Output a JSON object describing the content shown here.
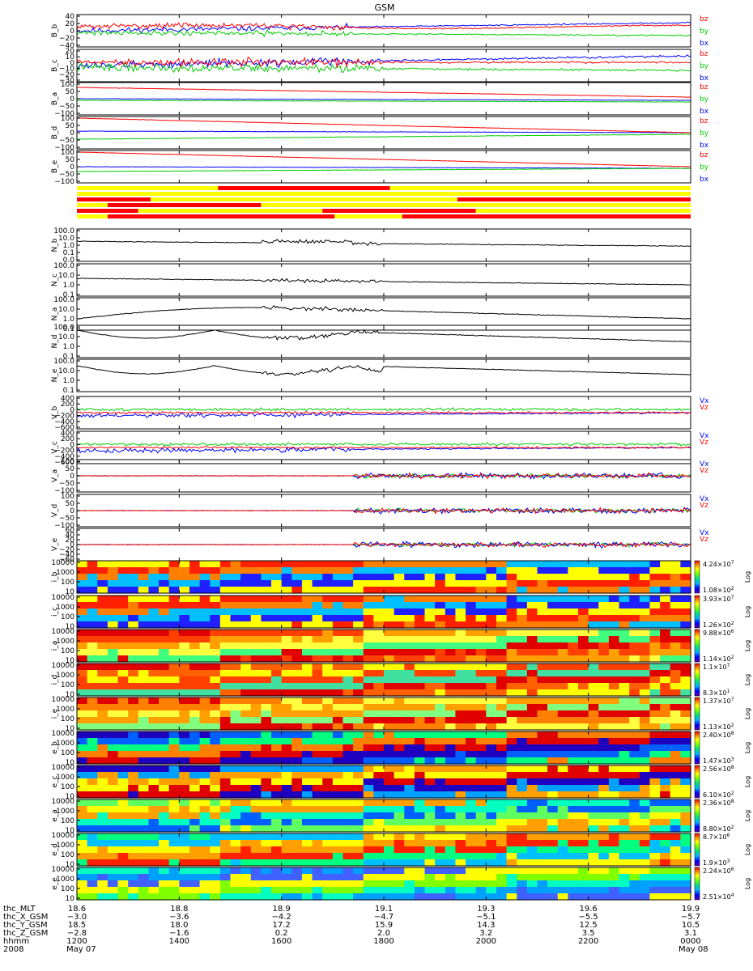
{
  "chart_data": {
    "type": "line",
    "title": "GSM",
    "colors": {
      "bx": "#0000ff",
      "by": "#00cc00",
      "bz": "#ff0000",
      "density": "#000000",
      "bar_on": "#ff0000",
      "bar_off": "#ffff00"
    },
    "x_axis": {
      "range_hhmm": [
        "1200",
        "0000"
      ],
      "hhmm_ticks": [
        "1200",
        "1400",
        "1600",
        "1800",
        "2000",
        "2200",
        "0000"
      ],
      "date_start": "May 07",
      "date_end": "May 08",
      "year": "2008",
      "ephemeris": [
        {
          "name": "thc_MLT",
          "values": [
            "18.6",
            "18.8",
            "18.9",
            "19.1",
            "19.3",
            "19.6",
            "19.9"
          ]
        },
        {
          "name": "thc_X_GSM",
          "values": [
            "−3.0",
            "−3.6",
            "−4.2",
            "−4.7",
            "−5.1",
            "−5.5",
            "−5.7"
          ]
        },
        {
          "name": "thc_Y_GSM",
          "values": [
            "18.5",
            "18.0",
            "17.2",
            "15.9",
            "14.3",
            "12.5",
            "10.5"
          ]
        },
        {
          "name": "thc_Z_GSM",
          "values": [
            "−2.8",
            "−1.6",
            "0.2",
            "2.0",
            "3.2",
            "3.5",
            "3.1"
          ]
        },
        {
          "name": "hhmm",
          "values": [
            "1200",
            "1400",
            "1600",
            "1800",
            "2000",
            "2200",
            "0000"
          ]
        }
      ]
    },
    "field_panels": [
      {
        "ylabel": "B_b",
        "ticks": [
          "40",
          "20",
          "0",
          "−20",
          "−40"
        ],
        "ylim": [
          -40,
          40
        ],
        "legend": [
          "bz",
          "by",
          "bx"
        ]
      },
      {
        "ylabel": "B_c",
        "ticks": [
          "20",
          "10",
          "0",
          "−10",
          "−20",
          "−30"
        ],
        "ylim": [
          -30,
          20
        ],
        "legend": [
          "bz",
          "by",
          "bx"
        ]
      },
      {
        "ylabel": "B_a",
        "ticks": [
          "100",
          "50",
          "0",
          "−50",
          "−100"
        ],
        "ylim": [
          -100,
          100
        ],
        "legend": [
          "bz",
          "by",
          "bx"
        ]
      },
      {
        "ylabel": "B_d",
        "ticks": [
          "100",
          "50",
          "0",
          "−50",
          "−100"
        ],
        "ylim": [
          -100,
          100
        ],
        "legend": [
          "bz",
          "by",
          "bx"
        ]
      },
      {
        "ylabel": "B_e",
        "ticks": [
          "100",
          "50",
          "0",
          "−50",
          "−100"
        ],
        "ylim": [
          -100,
          100
        ],
        "legend": [
          "bz",
          "by",
          "bx"
        ]
      }
    ],
    "density_panels": [
      {
        "ylabel": "N_b",
        "ticks": [
          "100.0",
          "10.0",
          "1.0",
          "0.1",
          "0.0"
        ],
        "scale": "log"
      },
      {
        "ylabel": "N_c",
        "ticks": [
          "100.0",
          "10.0",
          "1.0",
          "0.1"
        ],
        "scale": "log"
      },
      {
        "ylabel": "N_a",
        "ticks": [
          "100.0",
          "10.0",
          "1.0",
          "0.1"
        ],
        "scale": "log"
      },
      {
        "ylabel": "N_d",
        "ticks": [
          "100.0",
          "10.0",
          "1.0",
          "0.1"
        ],
        "scale": "log"
      },
      {
        "ylabel": "N_e",
        "ticks": [
          "100.0",
          "10.0",
          "1.0",
          "0.1"
        ],
        "scale": "log"
      }
    ],
    "velocity_panels": [
      {
        "ylabel": "V_b",
        "ticks": [
          "400",
          "200",
          "0",
          "−200",
          "−400",
          "−600"
        ],
        "ylim": [
          -600,
          400
        ],
        "legend": [
          "Vx",
          "Vz"
        ]
      },
      {
        "ylabel": "V_c",
        "ticks": [
          "400",
          "200",
          "0",
          "−200",
          "−400",
          "−600"
        ],
        "ylim": [
          -600,
          400
        ],
        "legend": [
          "Vx",
          "Vz"
        ]
      },
      {
        "ylabel": "V_a",
        "ticks": [
          "100",
          "50",
          "0",
          "−50",
          "−100"
        ],
        "ylim": [
          -100,
          100
        ],
        "legend": [
          "Vx",
          "Vz"
        ]
      },
      {
        "ylabel": "V_d",
        "ticks": [
          "100",
          "50",
          "0",
          "−50",
          "−100"
        ],
        "ylim": [
          -100,
          100
        ],
        "legend": [
          "Vx",
          "Vz"
        ]
      },
      {
        "ylabel": "V_e",
        "ticks": [
          "60",
          "40",
          "20",
          "0",
          "−20",
          "−40",
          "−60"
        ],
        "ylim": [
          -60,
          60
        ],
        "legend": [
          "Vx",
          "Vz"
        ]
      }
    ],
    "spectrogram_panels": [
      {
        "ylabel": "i_b",
        "ticks": [
          "10000",
          "1000",
          "100",
          "10"
        ],
        "cb_max": "4.24×10",
        "cb_max_exp": "7",
        "cb_min": "1.08×10",
        "cb_min_exp": "2",
        "cb_label": "Log"
      },
      {
        "ylabel": "i_c",
        "ticks": [
          "10000",
          "1000",
          "100",
          "10"
        ],
        "cb_max": "3.93×10",
        "cb_max_exp": "7",
        "cb_min": "1.26×10",
        "cb_min_exp": "2",
        "cb_label": "Log"
      },
      {
        "ylabel": "i_a",
        "ticks": [
          "10000",
          "1000",
          "100",
          "10"
        ],
        "cb_max": "9.88×10",
        "cb_max_exp": "6",
        "cb_min": "1.14×10",
        "cb_min_exp": "2",
        "cb_label": "Log"
      },
      {
        "ylabel": "i_d",
        "ticks": [
          "10000",
          "1000",
          "100",
          "10"
        ],
        "cb_max": "1.1×10",
        "cb_max_exp": "7",
        "cb_min": "8.3×10",
        "cb_min_exp": "1",
        "cb_label": "Log"
      },
      {
        "ylabel": "i_e",
        "ticks": [
          "10000",
          "1000",
          "100",
          "10"
        ],
        "cb_max": "1.37×10",
        "cb_max_exp": "7",
        "cb_min": "1.13×10",
        "cb_min_exp": "2",
        "cb_label": "Log"
      },
      {
        "ylabel": "e_b",
        "ticks": [
          "10000",
          "1000",
          "100",
          "10"
        ],
        "cb_max": "2.40×10",
        "cb_max_exp": "8",
        "cb_min": "1.47×10",
        "cb_min_exp": "3",
        "cb_label": "Log"
      },
      {
        "ylabel": "e_c",
        "ticks": [
          "10000",
          "1000",
          "100",
          "10"
        ],
        "cb_max": "2.56×10",
        "cb_max_exp": "8",
        "cb_min": "6.10×10",
        "cb_min_exp": "2",
        "cb_label": "Log"
      },
      {
        "ylabel": "e_a",
        "ticks": [
          "10000",
          "1000",
          "100",
          "10"
        ],
        "cb_max": "2.36×10",
        "cb_max_exp": "8",
        "cb_min": "8.80×10",
        "cb_min_exp": "2",
        "cb_label": "Log"
      },
      {
        "ylabel": "e_d",
        "ticks": [
          "10000",
          "1000",
          "100",
          "10"
        ],
        "cb_max": "8.7×10",
        "cb_max_exp": "6",
        "cb_min": "1.9×10",
        "cb_min_exp": "3",
        "cb_label": "Log"
      },
      {
        "ylabel": "e_e",
        "ticks": [
          "10000",
          "1000",
          "100",
          "10"
        ],
        "cb_max": "2.24×10",
        "cb_max_exp": "6",
        "cb_min": "2.51×10",
        "cb_min_exp": "4",
        "cb_label": "Log"
      }
    ]
  }
}
